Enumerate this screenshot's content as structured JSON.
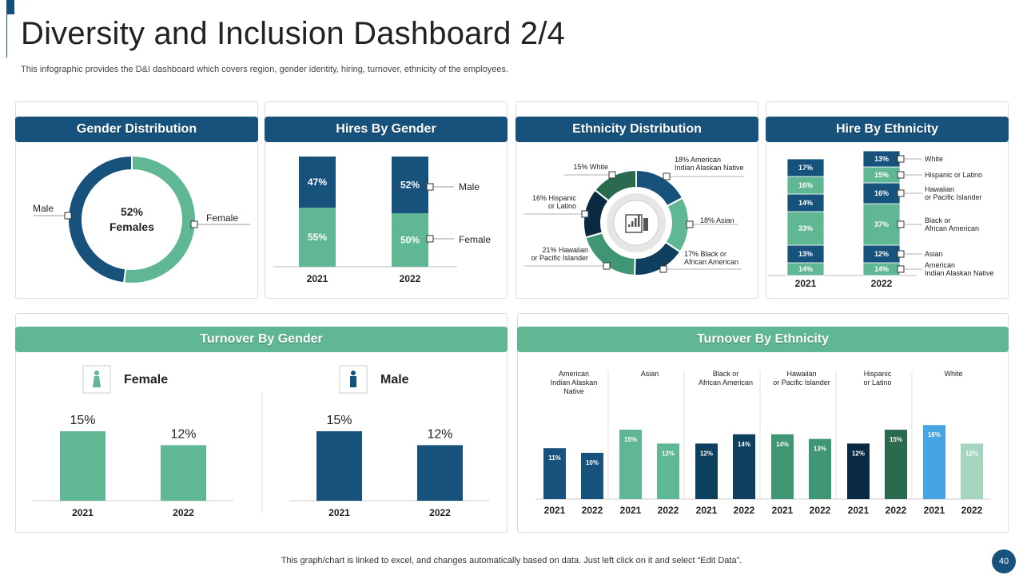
{
  "page": {
    "title": "Diversity and Inclusion Dashboard 2/4",
    "subtitle": "This infographic provides the D&I dashboard which covers region, gender identity, hiring, turnover,  ethnicity of the employees.",
    "footer": "This graph/chart is linked to excel,  and changes automatically based on data. Just left click on it and select “Edit Data”.",
    "page_number": "40"
  },
  "colors": {
    "navy": "#17527d",
    "green": "#5fb893",
    "mid_green": "#3e9673",
    "dark_green": "#2a6b50",
    "dark_navy": "#0e3f5e",
    "darkest": "#0b2a42",
    "sky": "#47a4e3",
    "pale_green": "#a3d5bf"
  },
  "chart_data": [
    {
      "id": "gender_distribution",
      "type": "pie",
      "title": "Gender Distribution",
      "center_value": "52%",
      "center_label": "Females",
      "labels": [
        "Female",
        "Male"
      ],
      "values": [
        52,
        48
      ]
    },
    {
      "id": "hires_by_gender",
      "type": "bar",
      "stacked": true,
      "title": "Hires By Gender",
      "categories": [
        "2021",
        "2022"
      ],
      "series": [
        {
          "name": "Female",
          "values": [
            55,
            50
          ],
          "labels": [
            "55%",
            "50%"
          ]
        },
        {
          "name": "Male",
          "values": [
            47,
            52
          ],
          "labels": [
            "47%",
            "52%"
          ]
        }
      ]
    },
    {
      "id": "ethnicity_distribution",
      "type": "pie",
      "title": "Ethnicity Distribution",
      "labels": [
        "18% American Indian Alaskan Native",
        "18% Asian",
        "17% Black or African American",
        "21% Hawaiian or Pacific  Islander",
        "16% Hispanic or Latino",
        "15% White"
      ],
      "values": [
        18,
        18,
        17,
        21,
        16,
        15
      ]
    },
    {
      "id": "hire_by_ethnicity",
      "type": "bar",
      "stacked": true,
      "title": "Hire By Ethnicity",
      "categories": [
        "2021",
        "2022"
      ],
      "series": [
        {
          "name": "American Indian Alaskan Native",
          "values": [
            14,
            14
          ]
        },
        {
          "name": "Asian",
          "values": [
            13,
            12
          ]
        },
        {
          "name": "Black or African American",
          "values": [
            33,
            37
          ]
        },
        {
          "name": "Hawaiian or Pacific  Islander",
          "values": [
            14,
            16
          ]
        },
        {
          "name": "Hispanic or Latino",
          "values": [
            16,
            15
          ]
        },
        {
          "name": "White",
          "values": [
            17,
            13
          ]
        }
      ]
    },
    {
      "id": "turnover_by_gender",
      "type": "bar",
      "title": "Turnover By Gender",
      "groups": [
        {
          "name": "Female",
          "categories": [
            "2021",
            "2022"
          ],
          "values": [
            15,
            12
          ],
          "labels": [
            "15%",
            "12%"
          ]
        },
        {
          "name": "Male",
          "categories": [
            "2021",
            "2022"
          ],
          "values": [
            15,
            12
          ],
          "labels": [
            "15%",
            "12%"
          ]
        }
      ]
    },
    {
      "id": "turnover_by_ethnicity",
      "type": "bar",
      "title": "Turnover By Ethnicity",
      "groups": [
        {
          "name": "American Indian Alaskan Native",
          "categories": [
            "2021",
            "2022"
          ],
          "values": [
            11,
            10
          ]
        },
        {
          "name": "Asian",
          "categories": [
            "2021",
            "2022"
          ],
          "values": [
            15,
            12
          ]
        },
        {
          "name": "Black or African American",
          "categories": [
            "2021",
            "2022"
          ],
          "values": [
            12,
            14
          ]
        },
        {
          "name": "Hawaiian or Pacific  Islander",
          "categories": [
            "2021",
            "2022"
          ],
          "values": [
            14,
            13
          ]
        },
        {
          "name": "Hispanic or Latino",
          "categories": [
            "2021",
            "2022"
          ],
          "values": [
            12,
            15
          ]
        },
        {
          "name": "White",
          "categories": [
            "2021",
            "2022"
          ],
          "values": [
            16,
            12
          ]
        }
      ]
    }
  ],
  "texts": {
    "gender_distribution": {
      "male": "Male",
      "female": "Female"
    },
    "hires_by_gender": {
      "male": "Male",
      "female": "Female"
    },
    "hire_by_ethnicity": {
      "legend": [
        "White",
        "Hispanic or Latino",
        "Hawaiian\nor Pacific  Islander",
        "Black or\nAfrican American",
        "Asian",
        "American\nIndian Alaskan Native"
      ]
    },
    "ethnicity_distribution": {
      "labels": [
        "18% American\nIndian Alaskan Native",
        "18% Asian",
        "17% Black or\nAfrican American",
        "21% Hawaiian\nor Pacific  Islander",
        "16% Hispanic\nor Latino",
        "15% White"
      ]
    },
    "turnover_by_ethnicity": {
      "group_labels": [
        "American\nIndian Alaskan\nNative",
        "Asian",
        "Black or\nAfrican American",
        "Hawaiian\nor Pacific  Islander",
        "Hispanic\nor Latino",
        "White"
      ]
    }
  }
}
